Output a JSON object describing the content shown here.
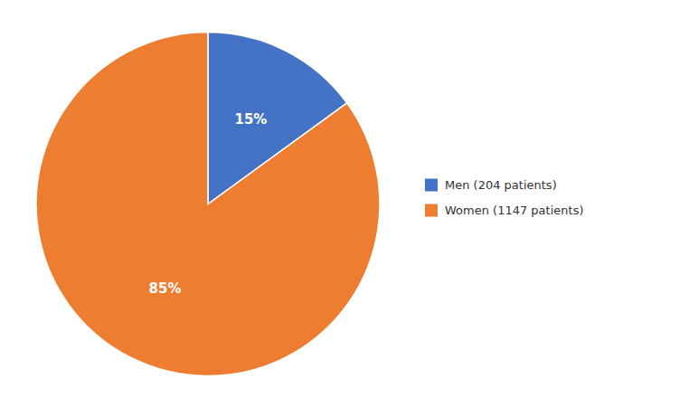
{
  "chart_data": {
    "type": "pie",
    "categories": [
      "Men (204 patients)",
      "Women (1147 patients)"
    ],
    "values": [
      15,
      85
    ],
    "value_labels": [
      "15%",
      "85%"
    ],
    "colors": [
      "#4472C4",
      "#ED7D31"
    ],
    "data_labels": true,
    "legend": "right"
  }
}
